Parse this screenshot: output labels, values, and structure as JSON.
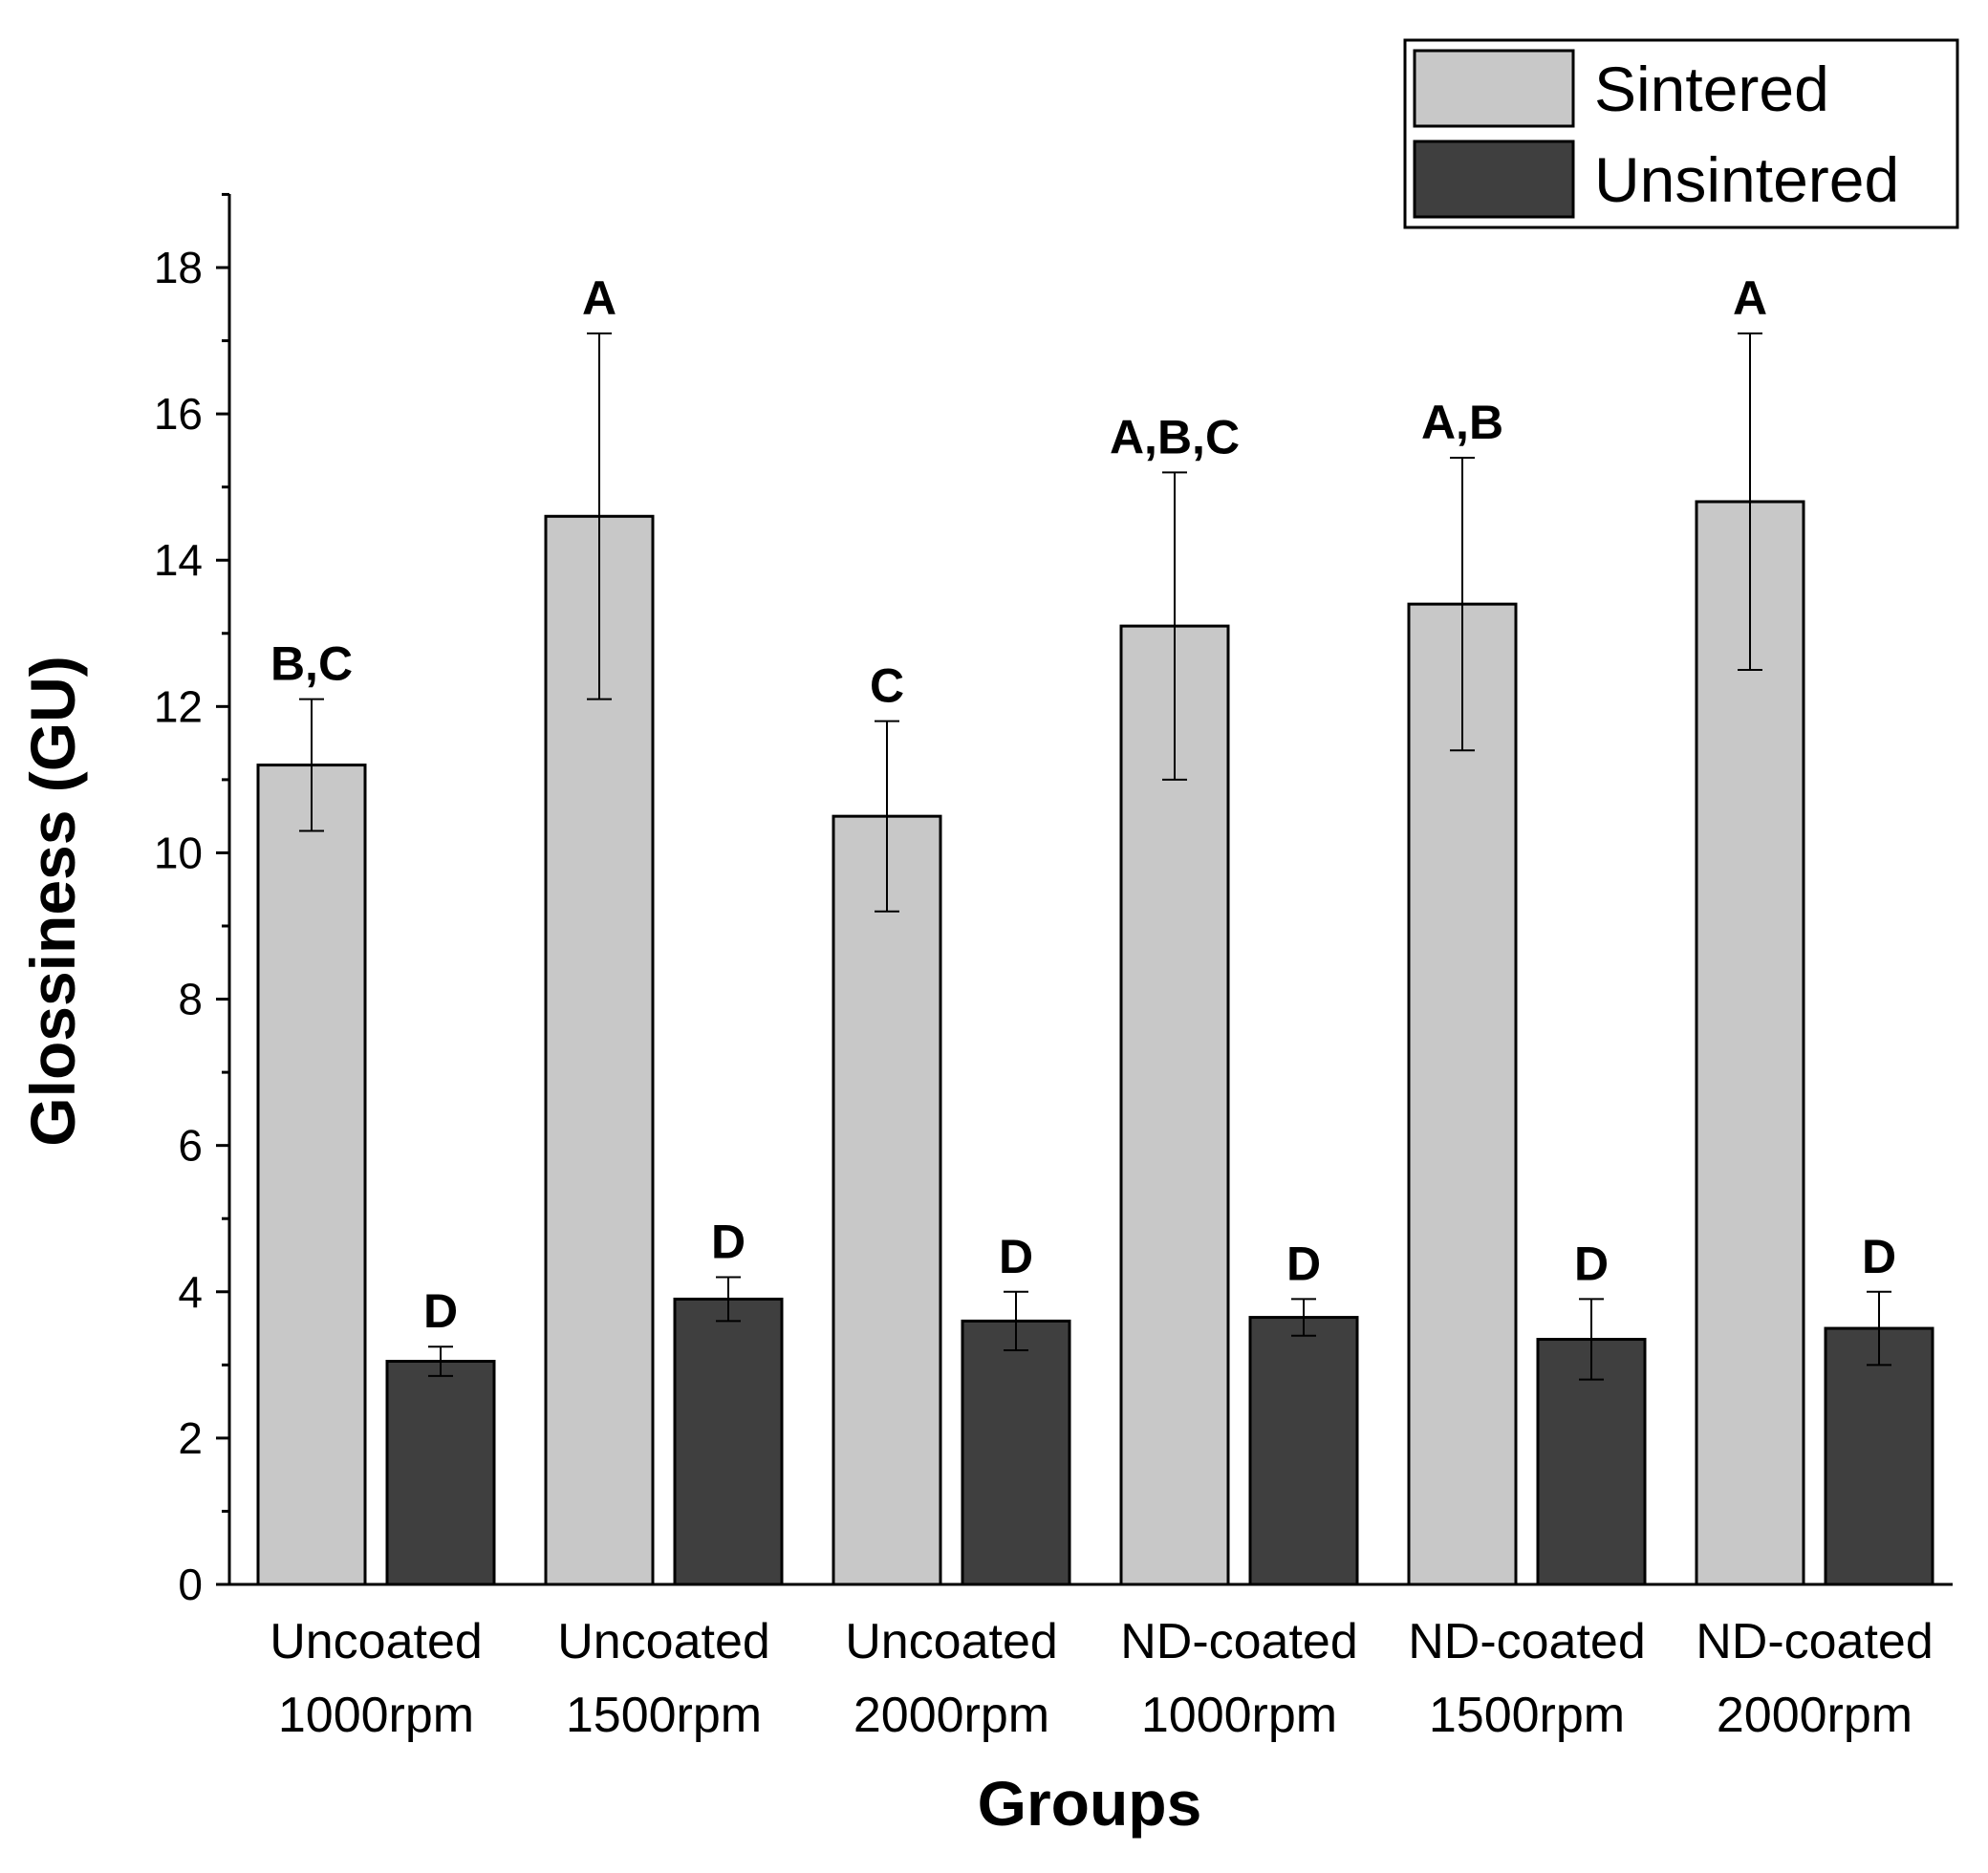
{
  "chart_data": {
    "type": "bar",
    "xlabel": "Groups",
    "ylabel": "Glossiness (GU)",
    "ylim": [
      0,
      19
    ],
    "yticks": [
      0,
      2,
      4,
      6,
      8,
      10,
      12,
      14,
      16,
      18
    ],
    "categories": [
      [
        "Uncoated",
        "1000rpm"
      ],
      [
        "Uncoated",
        "1500rpm"
      ],
      [
        "Uncoated",
        "2000rpm"
      ],
      [
        "ND-coated",
        "1000rpm"
      ],
      [
        "ND-coated",
        "1500rpm"
      ],
      [
        "ND-coated",
        "2000rpm"
      ]
    ],
    "series": [
      {
        "name": "Sintered",
        "color": "#c8c8c8",
        "values": [
          11.2,
          14.6,
          10.5,
          13.1,
          13.4,
          14.8
        ],
        "errors": [
          0.9,
          2.5,
          1.3,
          2.1,
          2.0,
          2.3
        ],
        "letters": [
          "B,C",
          "A",
          "C",
          "A,B,C",
          "A,B",
          "A"
        ]
      },
      {
        "name": "Unsintered",
        "color": "#3f3f3f",
        "values": [
          3.05,
          3.9,
          3.6,
          3.65,
          3.35,
          3.5
        ],
        "errors": [
          0.2,
          0.3,
          0.4,
          0.25,
          0.55,
          0.5
        ],
        "letters": [
          "D",
          "D",
          "D",
          "D",
          "D",
          "D"
        ]
      }
    ],
    "legend": {
      "position": "top-right"
    }
  }
}
